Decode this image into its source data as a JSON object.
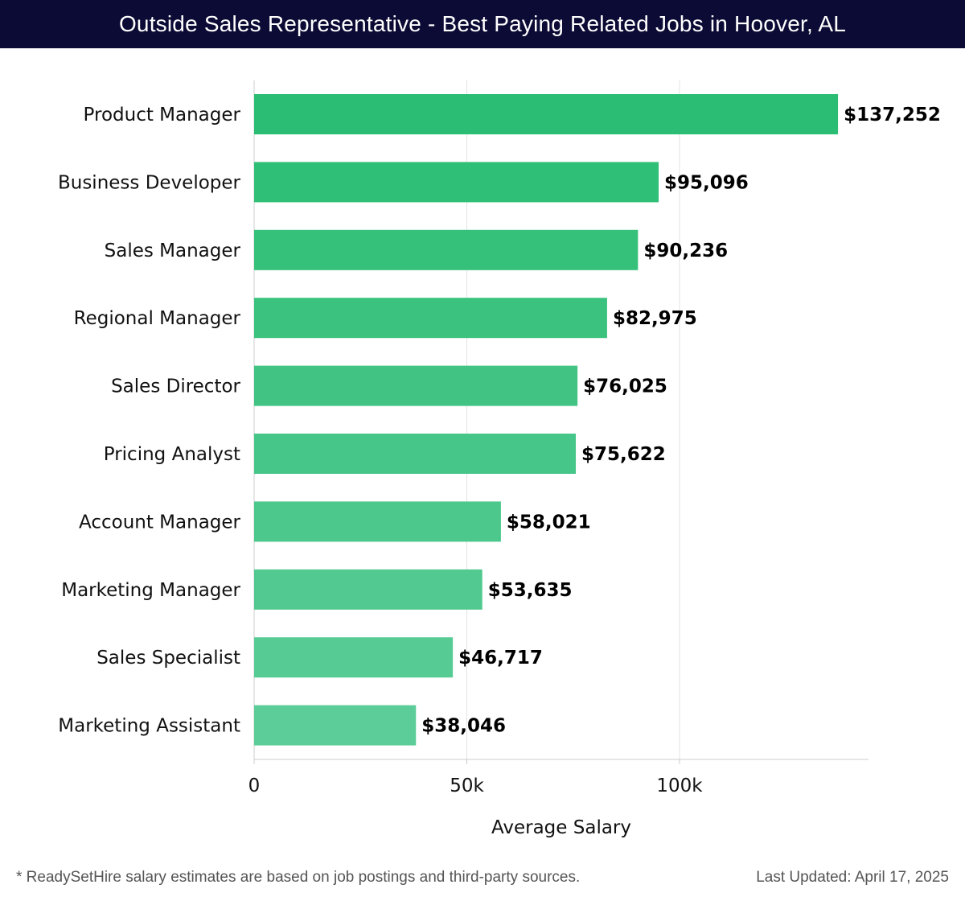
{
  "header": {
    "title": "Outside Sales Representative - Best Paying Related Jobs in Hoover, AL"
  },
  "footer": {
    "note": "* ReadySetHire salary estimates are based on job postings and third-party sources.",
    "updated": "Last Updated: April 17, 2025"
  },
  "colors": {
    "header_bg": "#0c0b35",
    "bar_top": "#2bbd73",
    "bar_bottom": "#5ccd98",
    "grid": "#e3e3e3",
    "axis": "#cccccc",
    "text": "#111111"
  },
  "chart_data": {
    "type": "bar",
    "orientation": "horizontal",
    "title": "Outside Sales Representative - Best Paying Related Jobs in Hoover, AL",
    "xlabel": "Average Salary",
    "ylabel": "",
    "xlim": [
      0,
      144000
    ],
    "x_ticks": [
      0,
      50000,
      100000
    ],
    "x_tick_labels": [
      "0",
      "50k",
      "100k"
    ],
    "grid": true,
    "categories": [
      "Product Manager",
      "Business Developer",
      "Sales Manager",
      "Regional Manager",
      "Sales Director",
      "Pricing Analyst",
      "Account Manager",
      "Marketing Manager",
      "Sales Specialist",
      "Marketing Assistant"
    ],
    "values": [
      137252,
      95096,
      90236,
      82975,
      76025,
      75622,
      58021,
      53635,
      46717,
      38046
    ],
    "value_labels": [
      "$137,252",
      "$95,096",
      "$90,236",
      "$82,975",
      "$76,025",
      "$75,622",
      "$58,021",
      "$53,635",
      "$46,717",
      "$38,046"
    ]
  }
}
